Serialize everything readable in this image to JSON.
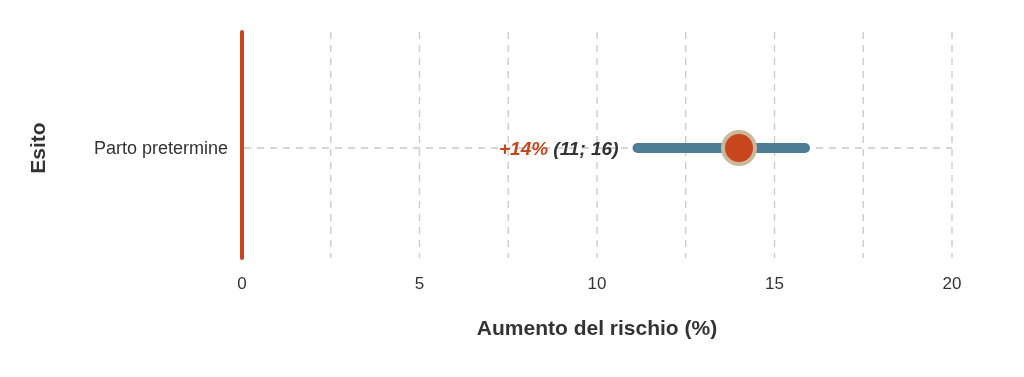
{
  "chart_data": {
    "type": "bar",
    "orientation": "horizontal",
    "categories": [
      "Parto pretermine"
    ],
    "series": [
      {
        "color": "#4e7d96",
        "base": [
          11
        ],
        "values": [
          5
        ]
      },
      {
        "type": "scatter",
        "color": "#c8461e",
        "values": [
          14
        ]
      }
    ],
    "annotations": [
      "+14%",
      "(11; 16)"
    ],
    "xlabel": "Aumento del rischio (%)",
    "ylabel": "Esito",
    "xlim": [
      0,
      20
    ],
    "xticks": [
      0,
      {
        "value": 2.5,
        "label": null
      },
      5,
      {
        "value": 7.5,
        "label": null
      },
      10,
      {
        "value": 12.5,
        "label": null
      },
      15,
      {
        "value": 17.5,
        "label": null
      },
      20
    ],
    "grid": true,
    "marker": "circle"
  }
}
